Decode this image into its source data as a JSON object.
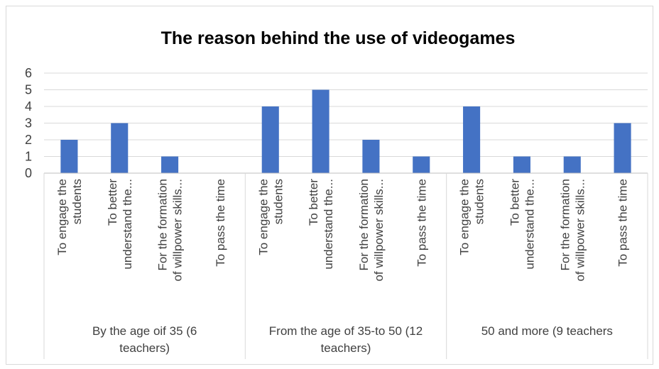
{
  "chart_data": {
    "type": "bar",
    "title": "The reason behind the use of videogames",
    "xlabel": "",
    "ylabel": "",
    "ylim": [
      0,
      6
    ],
    "yticks": [
      0,
      1,
      2,
      3,
      4,
      5,
      6
    ],
    "grid": true,
    "legend": "none",
    "bar_color": "#4472C4",
    "groups": [
      {
        "label_lines": [
          "By the age oif 35   (6",
          "teachers)"
        ],
        "categories": [
          {
            "lines": [
              "To engage the",
              "students"
            ],
            "value": 2
          },
          {
            "lines": [
              "To better",
              "understand the..."
            ],
            "value": 3
          },
          {
            "lines": [
              "For the formation",
              "of willpower skills..."
            ],
            "value": 1
          },
          {
            "lines": [
              "To pass the time"
            ],
            "value": 0
          }
        ]
      },
      {
        "label_lines": [
          "From the age of 35-to 50 (12",
          "teachers)"
        ],
        "categories": [
          {
            "lines": [
              "To engage the",
              "students"
            ],
            "value": 4
          },
          {
            "lines": [
              "To better",
              "understand the..."
            ],
            "value": 5
          },
          {
            "lines": [
              "For the formation",
              "of willpower skills..."
            ],
            "value": 2
          },
          {
            "lines": [
              "To pass the time"
            ],
            "value": 1
          }
        ]
      },
      {
        "label_lines": [
          "50 and more  (9 teachers"
        ],
        "categories": [
          {
            "lines": [
              "To engage the",
              "students"
            ],
            "value": 4
          },
          {
            "lines": [
              "To better",
              "understand the..."
            ],
            "value": 1
          },
          {
            "lines": [
              "For the formation",
              "of willpower skills..."
            ],
            "value": 1
          },
          {
            "lines": [
              "To pass the time"
            ],
            "value": 3
          }
        ]
      }
    ]
  }
}
